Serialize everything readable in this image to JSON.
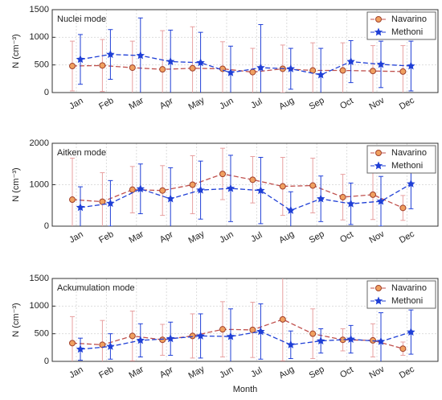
{
  "chart_data": [
    {
      "type": "line",
      "title": "Nuclei mode",
      "ylabel": "N (cm⁻³)",
      "categories": [
        "Jan",
        "Feb",
        "Mar",
        "Apr",
        "May",
        "Jun",
        "Jul",
        "Aug",
        "Sep",
        "Oct",
        "Nov",
        "Dec"
      ],
      "series": [
        {
          "name": "Navarino",
          "color": "#c0504d",
          "values": [
            480,
            490,
            450,
            420,
            440,
            430,
            370,
            430,
            400,
            400,
            390,
            380
          ],
          "errors": [
            450,
            470,
            480,
            700,
            750,
            490,
            430,
            430,
            500,
            500,
            460,
            470
          ]
        },
        {
          "name": "Methoni",
          "color": "#1f3fd6",
          "values": [
            600,
            690,
            670,
            560,
            540,
            360,
            450,
            430,
            320,
            560,
            510,
            480
          ],
          "errors": [
            450,
            450,
            680,
            570,
            550,
            480,
            780,
            370,
            480,
            380,
            420,
            450
          ]
        }
      ],
      "ylim": [
        0,
        1500
      ],
      "yticks": [
        0,
        500,
        1000,
        1500
      ],
      "grid": true,
      "legend": "upper right"
    },
    {
      "type": "line",
      "title": "Aitken mode",
      "ylabel": "N (cm⁻³)",
      "categories": [
        "Jan",
        "Feb",
        "Mar",
        "Apr",
        "May",
        "Jun",
        "Jul",
        "Aug",
        "Sep",
        "Oct",
        "Nov",
        "Dec"
      ],
      "series": [
        {
          "name": "Navarino",
          "color": "#c0504d",
          "values": [
            640,
            590,
            880,
            860,
            1000,
            1260,
            1120,
            960,
            980,
            700,
            760,
            440
          ],
          "errors": [
            1000,
            700,
            560,
            600,
            700,
            620,
            560,
            700,
            660,
            550,
            600,
            300
          ]
        },
        {
          "name": "Methoni",
          "color": "#1f3fd6",
          "values": [
            450,
            550,
            900,
            660,
            870,
            910,
            860,
            380,
            660,
            540,
            600,
            1020
          ],
          "errors": [
            500,
            550,
            600,
            750,
            700,
            800,
            800,
            450,
            550,
            500,
            600,
            600
          ]
        }
      ],
      "ylim": [
        0,
        2000
      ],
      "yticks": [
        0,
        1000,
        2000
      ],
      "grid": true,
      "legend": "upper right"
    },
    {
      "type": "line",
      "title": "Ackumulation mode",
      "ylabel": "N (cm⁻³)",
      "xlabel": "Month",
      "categories": [
        "Jan",
        "Feb",
        "Mar",
        "Apr",
        "May",
        "Jun",
        "Jul",
        "Aug",
        "Sep",
        "Oct",
        "Nov",
        "Dec"
      ],
      "series": [
        {
          "name": "Navarino",
          "color": "#c0504d",
          "values": [
            330,
            300,
            460,
            390,
            460,
            580,
            570,
            760,
            500,
            390,
            380,
            230
          ],
          "errors": [
            480,
            440,
            450,
            280,
            400,
            500,
            500,
            750,
            450,
            200,
            300,
            120
          ]
        },
        {
          "name": "Methoni",
          "color": "#1f3fd6",
          "values": [
            220,
            270,
            380,
            410,
            460,
            450,
            540,
            300,
            370,
            400,
            360,
            530
          ],
          "errors": [
            200,
            230,
            300,
            300,
            400,
            500,
            500,
            250,
            220,
            250,
            520,
            400
          ]
        }
      ],
      "ylim": [
        0,
        1500
      ],
      "yticks": [
        0,
        500,
        1000,
        1500
      ],
      "grid": true,
      "legend": "upper right"
    }
  ]
}
